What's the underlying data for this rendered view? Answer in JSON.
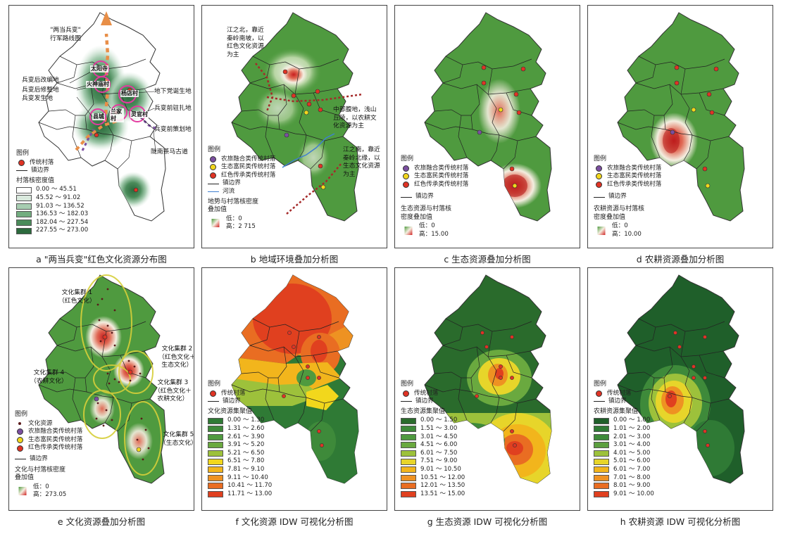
{
  "colors": {
    "map_green": "#4f9a3f",
    "red": "#e03324",
    "yellow": "#f2d71c",
    "purple": "#7b4fa0",
    "river": "#3f7fd0",
    "arrow_orange": "#e88e47",
    "arrow_purple": "#7b4fa0",
    "density_classes": [
      "#ffffff",
      "#d9e9dd",
      "#a7cdb1",
      "#72ad7f",
      "#4a8b5a",
      "#2c6a3d"
    ],
    "idw_f": [
      "#2f7a35",
      "#3e8a3a",
      "#4f9a3f",
      "#6aa93f",
      "#9dc13b",
      "#f2d71c",
      "#f2b51c",
      "#ee9222",
      "#e96d22",
      "#e0401f"
    ],
    "idw_g": [
      "#2a6b2c",
      "#3e8a3a",
      "#4f9a3f",
      "#6aa93f",
      "#9dc13b",
      "#e7d52a",
      "#f2b51c",
      "#ee9222",
      "#e96d22",
      "#e0401f"
    ],
    "idw_h": [
      "#1f5f2a",
      "#2f7a35",
      "#3e8a3a",
      "#5c9f3f",
      "#9dc13b",
      "#e7d52a",
      "#f2b51c",
      "#ee9222",
      "#e96d22",
      "#e0401f"
    ]
  },
  "legend_title": "图例",
  "boundary_label": "镇边界",
  "village_label": "传统村落",
  "cat_agri_tourism": "农旅融合类传统村落",
  "cat_eco_rich": "生态富民类传统村落",
  "cat_red_heritage": "红色传承类传统村落",
  "low_prefix": "低：",
  "high_prefix": "高：",
  "panel_a": {
    "caption": "a \"两当兵变\"红色文化资源分布图",
    "route_title": "\"两当兵变\"\n行军路线图",
    "labels": [
      "兵变后改编地",
      "兵变后修整地",
      "兵变发生地",
      "地下党诞生地",
      "兵变前驻扎地",
      "兵变前策划地",
      "陇南茶马古道"
    ],
    "villages": [
      "太阳寺",
      "火神庙村",
      "杨店村",
      "县城",
      "兰家村",
      "灵官村"
    ],
    "density_title": "村落核密度值",
    "density_classes": [
      "0.00 ～ 45.51",
      "45.52 ～ 91.02",
      "91.03 ～ 136.52",
      "136.53 ～ 182.03",
      "182.04 ～ 227.54",
      "227.55 ～ 273.00"
    ]
  },
  "panel_b": {
    "caption": "b 地域环境叠加分析图",
    "note1": "江之北，靠近\n秦岭南坡，以\n红色文化资源\n为主",
    "note2": "中部腹地，浅山\n丘陵，以农耕文\n化资源为主",
    "note3": "江之南，靠近\n秦岭北缘，以\n生态文化资源\n为主",
    "river_label": "河流",
    "overlay_title": "地势与村落核密度\n叠加值",
    "low": "0",
    "high": "2 715"
  },
  "panel_c": {
    "caption": "c 生态资源叠加分析图",
    "overlay_title": "生态资源与村落核\n密度叠加值",
    "low": "0",
    "high": "15.00"
  },
  "panel_d": {
    "caption": "d 农耕资源叠加分析图",
    "overlay_title": "农耕资源与村落核\n密度叠加值",
    "low": "0",
    "high": "10.00"
  },
  "panel_e": {
    "caption": "e 文化资源叠加分析图",
    "clusters": [
      "文化集群 1\n（红色文化）",
      "文化集群 2\n（红色文化＋\n生态文化）",
      "文化集群 3\n（红色文化＋\n农耕文化）",
      "文化集群 4\n（农耕文化）",
      "文化集群 5\n（生态文化）"
    ],
    "resource_label": "文化资源",
    "overlay_title": "文化与村落核密度\n叠加值",
    "low": "0",
    "high": "273.05"
  },
  "panel_f": {
    "caption": "f 文化资源 IDW 可视化分析图",
    "legend_value_title": "文化资源集聚值",
    "classes": [
      "0.00 ～ 1.30",
      "1.31 ～ 2.60",
      "2.61 ～ 3.90",
      "3.91 ～ 5.20",
      "5.21 ～ 6.50",
      "6.51 ～ 7.80",
      "7.81 ～ 9.10",
      "9.11 ～ 10.40",
      "10.41 ～ 11.70",
      "11.71 ～ 13.00"
    ]
  },
  "panel_g": {
    "caption": "g 生态资源 IDW 可视化分析图",
    "legend_value_title": "生态资源集聚值",
    "classes": [
      "0.00 ～ 1.50",
      "1.51 ～ 3.00",
      "3.01 ～ 4.50",
      "4.51 ～ 6.00",
      "6.01 ～ 7.50",
      "7.51 ～ 9.00",
      "9.01 ～ 10.50",
      "10.51 ～ 12.00",
      "12.01 ～ 13.50",
      "13.51 ～ 15.00"
    ]
  },
  "panel_h": {
    "caption": "h 农耕资源 IDW 可视化分析图",
    "legend_value_title": "农耕资源集聚值",
    "classes": [
      "0.00 ～ 1.00",
      "1.01 ～ 2.00",
      "2.01 ～ 3.00",
      "3.01 ～ 4.00",
      "4.01 ～ 5.00",
      "5.01 ～ 6.00",
      "6.01 ～ 7.00",
      "7.01 ～ 8.00",
      "8.01 ～ 9.00",
      "9.01 ～ 10.00"
    ]
  }
}
